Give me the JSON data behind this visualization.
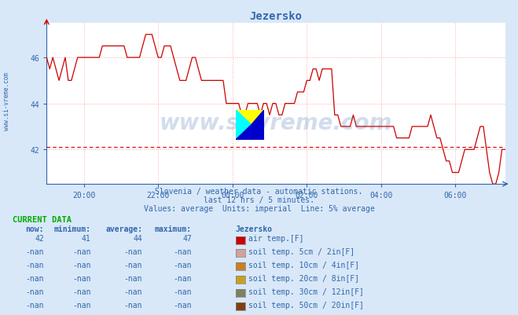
{
  "title": "Jezersko",
  "bg_color": "#d8e8f8",
  "plot_bg_color": "#ffffff",
  "line_color": "#cc0000",
  "avg_line_color": "#cc0000",
  "avg_line_value": 42.1,
  "grid_color": "#ffaaaa",
  "axis_color": "#3366aa",
  "text_color": "#3366aa",
  "ylim": [
    40.5,
    47.5
  ],
  "yticks": [
    42,
    44,
    46
  ],
  "tick_positions": [
    12,
    36,
    60,
    84,
    108,
    132
  ],
  "tick_labels": [
    "20:00",
    "22:00",
    "00:00",
    "02:00",
    "04:00",
    "06:00"
  ],
  "watermark": "www.si-vreme.com",
  "subtitle1": "Slovenia / weather data - automatic stations.",
  "subtitle2": "last 12 hrs / 5 minutes.",
  "subtitle3": "Values: average  Units: imperial  Line: 5% average",
  "sidebar_text": "www.si-vreme.com",
  "current_data_header": "CURRENT DATA",
  "table_headers": [
    "now:",
    "minimum:",
    "average:",
    "maximum:",
    "Jezersko"
  ],
  "table_rows": [
    [
      "42",
      "41",
      "44",
      "47",
      "#cc0000",
      "air temp.[F]"
    ],
    [
      "-nan",
      "-nan",
      "-nan",
      "-nan",
      "#d4a0a0",
      "soil temp. 5cm / 2in[F]"
    ],
    [
      "-nan",
      "-nan",
      "-nan",
      "-nan",
      "#c88020",
      "soil temp. 10cm / 4in[F]"
    ],
    [
      "-nan",
      "-nan",
      "-nan",
      "-nan",
      "#c8a020",
      "soil temp. 20cm / 8in[F]"
    ],
    [
      "-nan",
      "-nan",
      "-nan",
      "-nan",
      "#808060",
      "soil temp. 30cm / 12in[F]"
    ],
    [
      "-nan",
      "-nan",
      "-nan",
      "-nan",
      "#804010",
      "soil temp. 50cm / 20in[F]"
    ]
  ],
  "temp_data": [
    46,
    45.5,
    46,
    45.5,
    45,
    45.5,
    46,
    45,
    45,
    45.5,
    46,
    46,
    46,
    46,
    46,
    46,
    46,
    46,
    46.5,
    46.5,
    46.5,
    46.5,
    46.5,
    46.5,
    46.5,
    46.5,
    46,
    46,
    46,
    46,
    46,
    46.5,
    47,
    47,
    47,
    46.5,
    46,
    46,
    46.5,
    46.5,
    46.5,
    46,
    45.5,
    45,
    45,
    45,
    45.5,
    46,
    46,
    45.5,
    45,
    45,
    45,
    45,
    45,
    45,
    45,
    45,
    44,
    44,
    44,
    44,
    44,
    43.5,
    43.5,
    44,
    44,
    44,
    44,
    43.5,
    44,
    44,
    43.5,
    44,
    44,
    43.5,
    43.5,
    44,
    44,
    44,
    44,
    44.5,
    44.5,
    44.5,
    45,
    45,
    45.5,
    45.5,
    45,
    45.5,
    45.5,
    45.5,
    45.5,
    43.5,
    43.5,
    43,
    43,
    43,
    43,
    43.5,
    43,
    43,
    43,
    43,
    43,
    43,
    43,
    43,
    43,
    43,
    43,
    43,
    43,
    42.5,
    42.5,
    42.5,
    42.5,
    42.5,
    43,
    43,
    43,
    43,
    43,
    43,
    43.5,
    43,
    42.5,
    42.5,
    42,
    41.5,
    41.5,
    41,
    41,
    41,
    41.5,
    42,
    42,
    42,
    42,
    42.5,
    43,
    43,
    42,
    41,
    40.5,
    40.5,
    41,
    42,
    42
  ]
}
